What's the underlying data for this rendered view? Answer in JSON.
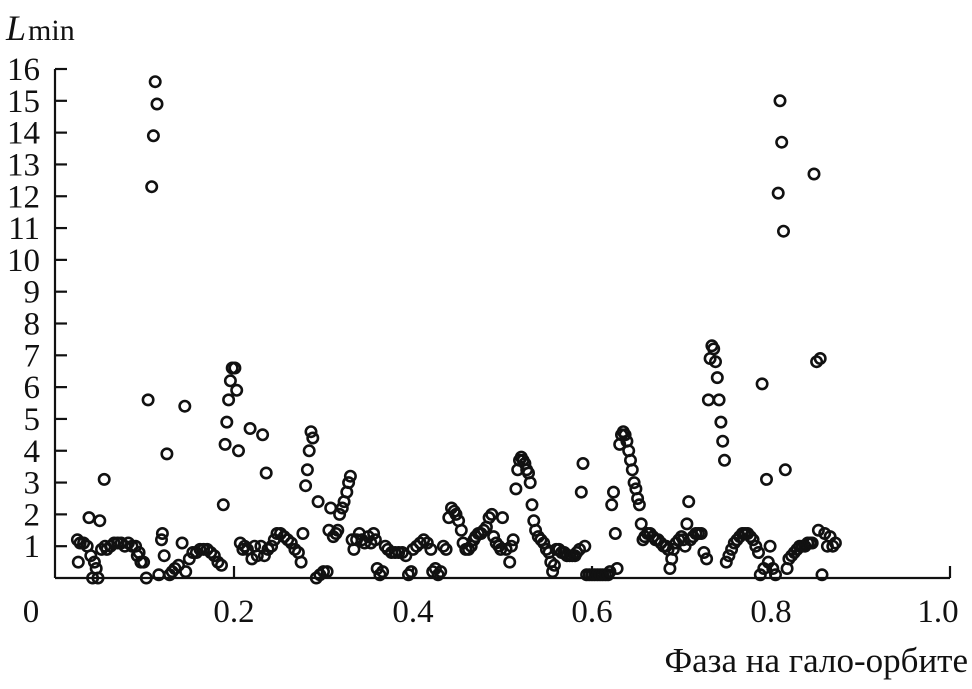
{
  "chart_data": {
    "type": "scatter",
    "title": "",
    "ylabel_main": "L",
    "ylabel_sub": "min",
    "xlabel": "Фаза на гало-орбите",
    "xlim": [
      0,
      1.0
    ],
    "ylim": [
      0,
      16
    ],
    "x_ticks": [
      0.2,
      0.4,
      0.6,
      0.8,
      1.0
    ],
    "x_tick_labels": [
      "0.2",
      "0.4",
      "0.6",
      "0.8",
      "1.0"
    ],
    "x_origin_label": "0",
    "y_ticks": [
      1,
      2,
      3,
      4,
      5,
      6,
      7,
      8,
      9,
      10,
      11,
      12,
      13,
      14,
      15,
      16
    ],
    "y_tick_labels": [
      "1",
      "2",
      "3",
      "4",
      "5",
      "6",
      "7",
      "8",
      "9",
      "10",
      "11",
      "12",
      "13",
      "14",
      "15",
      "16"
    ],
    "grid": false,
    "legend": "none",
    "marker": "open-circle",
    "points": [
      [
        0.025,
        1.2
      ],
      [
        0.026,
        0.5
      ],
      [
        0.028,
        1.1
      ],
      [
        0.032,
        1.1
      ],
      [
        0.036,
        1.0
      ],
      [
        0.038,
        1.9
      ],
      [
        0.04,
        0.7
      ],
      [
        0.042,
        0.0
      ],
      [
        0.044,
        0.5
      ],
      [
        0.046,
        0.3
      ],
      [
        0.048,
        0.0
      ],
      [
        0.05,
        1.8
      ],
      [
        0.052,
        0.9
      ],
      [
        0.055,
        3.1
      ],
      [
        0.056,
        1.0
      ],
      [
        0.058,
        0.9
      ],
      [
        0.062,
        1.0
      ],
      [
        0.066,
        1.1
      ],
      [
        0.07,
        1.1
      ],
      [
        0.074,
        1.1
      ],
      [
        0.078,
        1.0
      ],
      [
        0.082,
        1.1
      ],
      [
        0.086,
        1.0
      ],
      [
        0.09,
        1.0
      ],
      [
        0.092,
        0.7
      ],
      [
        0.094,
        0.8
      ],
      [
        0.096,
        0.5
      ],
      [
        0.099,
        0.5
      ],
      [
        0.102,
        0.0
      ],
      [
        0.104,
        5.6
      ],
      [
        0.108,
        12.3
      ],
      [
        0.11,
        13.9
      ],
      [
        0.112,
        15.6
      ],
      [
        0.114,
        14.9
      ],
      [
        0.116,
        0.1
      ],
      [
        0.119,
        1.2
      ],
      [
        0.12,
        1.4
      ],
      [
        0.122,
        0.7
      ],
      [
        0.125,
        3.9
      ],
      [
        0.128,
        0.1
      ],
      [
        0.131,
        0.2
      ],
      [
        0.134,
        0.3
      ],
      [
        0.138,
        0.4
      ],
      [
        0.142,
        1.1
      ],
      [
        0.145,
        5.4
      ],
      [
        0.146,
        0.2
      ],
      [
        0.15,
        0.6
      ],
      [
        0.154,
        0.8
      ],
      [
        0.158,
        0.8
      ],
      [
        0.162,
        0.9
      ],
      [
        0.166,
        0.9
      ],
      [
        0.17,
        0.9
      ],
      [
        0.174,
        0.8
      ],
      [
        0.178,
        0.7
      ],
      [
        0.182,
        0.5
      ],
      [
        0.186,
        0.4
      ],
      [
        0.188,
        2.3
      ],
      [
        0.19,
        4.2
      ],
      [
        0.192,
        4.9
      ],
      [
        0.194,
        5.6
      ],
      [
        0.196,
        6.2
      ],
      [
        0.198,
        6.6
      ],
      [
        0.201,
        6.6
      ],
      [
        0.203,
        5.9
      ],
      [
        0.205,
        4.0
      ],
      [
        0.207,
        1.1
      ],
      [
        0.21,
        0.9
      ],
      [
        0.212,
        1.0
      ],
      [
        0.215,
        0.9
      ],
      [
        0.218,
        4.7
      ],
      [
        0.22,
        0.6
      ],
      [
        0.223,
        1.0
      ],
      [
        0.226,
        0.7
      ],
      [
        0.23,
        1.0
      ],
      [
        0.232,
        4.5
      ],
      [
        0.234,
        0.7
      ],
      [
        0.236,
        3.3
      ],
      [
        0.238,
        0.9
      ],
      [
        0.242,
        1.0
      ],
      [
        0.245,
        1.2
      ],
      [
        0.248,
        1.4
      ],
      [
        0.252,
        1.4
      ],
      [
        0.256,
        1.3
      ],
      [
        0.26,
        1.2
      ],
      [
        0.264,
        1.1
      ],
      [
        0.268,
        0.9
      ],
      [
        0.272,
        0.8
      ],
      [
        0.275,
        0.5
      ],
      [
        0.277,
        1.4
      ],
      [
        0.28,
        2.9
      ],
      [
        0.282,
        3.4
      ],
      [
        0.284,
        4.0
      ],
      [
        0.286,
        4.6
      ],
      [
        0.288,
        4.4
      ],
      [
        0.292,
        0.0
      ],
      [
        0.294,
        2.4
      ],
      [
        0.296,
        0.1
      ],
      [
        0.3,
        0.2
      ],
      [
        0.304,
        0.2
      ],
      [
        0.306,
        1.5
      ],
      [
        0.308,
        2.2
      ],
      [
        0.311,
        1.3
      ],
      [
        0.314,
        1.4
      ],
      [
        0.316,
        1.5
      ],
      [
        0.318,
        2.0
      ],
      [
        0.321,
        2.2
      ],
      [
        0.323,
        2.4
      ],
      [
        0.326,
        2.7
      ],
      [
        0.328,
        3.0
      ],
      [
        0.33,
        3.2
      ],
      [
        0.332,
        1.2
      ],
      [
        0.334,
        0.9
      ],
      [
        0.337,
        1.2
      ],
      [
        0.34,
        1.4
      ],
      [
        0.343,
        1.2
      ],
      [
        0.346,
        1.1
      ],
      [
        0.35,
        1.3
      ],
      [
        0.353,
        1.1
      ],
      [
        0.356,
        1.4
      ],
      [
        0.358,
        1.2
      ],
      [
        0.36,
        0.3
      ],
      [
        0.363,
        0.1
      ],
      [
        0.366,
        0.2
      ],
      [
        0.369,
        1.0
      ],
      [
        0.372,
        0.9
      ],
      [
        0.376,
        0.8
      ],
      [
        0.38,
        0.8
      ],
      [
        0.384,
        0.8
      ],
      [
        0.388,
        0.8
      ],
      [
        0.392,
        0.7
      ],
      [
        0.395,
        0.1
      ],
      [
        0.398,
        0.2
      ],
      [
        0.4,
        0.9
      ],
      [
        0.404,
        1.0
      ],
      [
        0.408,
        1.1
      ],
      [
        0.412,
        1.2
      ],
      [
        0.416,
        1.1
      ],
      [
        0.42,
        0.9
      ],
      [
        0.422,
        0.2
      ],
      [
        0.425,
        0.3
      ],
      [
        0.428,
        0.1
      ],
      [
        0.431,
        0.2
      ],
      [
        0.434,
        1.0
      ],
      [
        0.437,
        0.9
      ],
      [
        0.44,
        1.9
      ],
      [
        0.443,
        2.2
      ],
      [
        0.446,
        2.1
      ],
      [
        0.448,
        2.0
      ],
      [
        0.451,
        1.8
      ],
      [
        0.454,
        1.5
      ],
      [
        0.456,
        1.1
      ],
      [
        0.459,
        0.9
      ],
      [
        0.462,
        0.9
      ],
      [
        0.465,
        1.0
      ],
      [
        0.468,
        1.2
      ],
      [
        0.47,
        1.3
      ],
      [
        0.473,
        1.4
      ],
      [
        0.476,
        1.4
      ],
      [
        0.479,
        1.5
      ],
      [
        0.482,
        1.6
      ],
      [
        0.485,
        1.9
      ],
      [
        0.488,
        2.0
      ],
      [
        0.49,
        1.3
      ],
      [
        0.493,
        1.1
      ],
      [
        0.496,
        1.0
      ],
      [
        0.498,
        0.9
      ],
      [
        0.5,
        1.9
      ],
      [
        0.504,
        0.9
      ],
      [
        0.508,
        0.5
      ],
      [
        0.51,
        1.0
      ],
      [
        0.512,
        1.2
      ],
      [
        0.515,
        2.8
      ],
      [
        0.517,
        3.4
      ],
      [
        0.519,
        3.7
      ],
      [
        0.521,
        3.8
      ],
      [
        0.523,
        3.7
      ],
      [
        0.525,
        3.6
      ],
      [
        0.527,
        3.4
      ],
      [
        0.529,
        3.3
      ],
      [
        0.531,
        3.0
      ],
      [
        0.533,
        2.3
      ],
      [
        0.535,
        1.8
      ],
      [
        0.537,
        1.5
      ],
      [
        0.54,
        1.3
      ],
      [
        0.543,
        1.2
      ],
      [
        0.546,
        1.1
      ],
      [
        0.549,
        0.9
      ],
      [
        0.552,
        0.8
      ],
      [
        0.554,
        0.5
      ],
      [
        0.556,
        0.2
      ],
      [
        0.558,
        0.4
      ],
      [
        0.56,
        0.9
      ],
      [
        0.563,
        0.9
      ],
      [
        0.566,
        0.8
      ],
      [
        0.569,
        0.8
      ],
      [
        0.572,
        0.7
      ],
      [
        0.575,
        0.7
      ],
      [
        0.578,
        0.7
      ],
      [
        0.581,
        0.7
      ],
      [
        0.583,
        0.8
      ],
      [
        0.586,
        0.9
      ],
      [
        0.588,
        2.7
      ],
      [
        0.59,
        3.6
      ],
      [
        0.592,
        1.0
      ],
      [
        0.594,
        0.1
      ],
      [
        0.597,
        0.1
      ],
      [
        0.6,
        0.1
      ],
      [
        0.603,
        0.1
      ],
      [
        0.606,
        0.1
      ],
      [
        0.609,
        0.1
      ],
      [
        0.612,
        0.1
      ],
      [
        0.615,
        0.1
      ],
      [
        0.618,
        0.1
      ],
      [
        0.62,
        0.2
      ],
      [
        0.622,
        2.3
      ],
      [
        0.624,
        2.7
      ],
      [
        0.626,
        1.4
      ],
      [
        0.628,
        0.3
      ],
      [
        0.631,
        4.2
      ],
      [
        0.633,
        4.5
      ],
      [
        0.635,
        4.6
      ],
      [
        0.637,
        4.5
      ],
      [
        0.639,
        4.3
      ],
      [
        0.641,
        4.0
      ],
      [
        0.643,
        3.7
      ],
      [
        0.645,
        3.4
      ],
      [
        0.647,
        3.0
      ],
      [
        0.649,
        2.8
      ],
      [
        0.651,
        2.5
      ],
      [
        0.653,
        2.3
      ],
      [
        0.655,
        1.7
      ],
      [
        0.657,
        1.2
      ],
      [
        0.659,
        1.3
      ],
      [
        0.662,
        1.4
      ],
      [
        0.665,
        1.4
      ],
      [
        0.668,
        1.3
      ],
      [
        0.671,
        1.2
      ],
      [
        0.674,
        1.2
      ],
      [
        0.677,
        1.1
      ],
      [
        0.68,
        1.0
      ],
      [
        0.683,
        1.0
      ],
      [
        0.685,
        0.9
      ],
      [
        0.687,
        0.3
      ],
      [
        0.689,
        0.6
      ],
      [
        0.691,
        0.9
      ],
      [
        0.694,
        1.1
      ],
      [
        0.697,
        1.2
      ],
      [
        0.7,
        1.3
      ],
      [
        0.702,
        1.2
      ],
      [
        0.704,
        1.0
      ],
      [
        0.706,
        1.7
      ],
      [
        0.708,
        2.4
      ],
      [
        0.71,
        1.2
      ],
      [
        0.713,
        1.3
      ],
      [
        0.716,
        1.4
      ],
      [
        0.719,
        1.4
      ],
      [
        0.722,
        1.4
      ],
      [
        0.725,
        0.8
      ],
      [
        0.728,
        0.6
      ],
      [
        0.73,
        5.6
      ],
      [
        0.732,
        6.9
      ],
      [
        0.734,
        7.3
      ],
      [
        0.736,
        7.2
      ],
      [
        0.738,
        6.8
      ],
      [
        0.74,
        6.3
      ],
      [
        0.742,
        5.6
      ],
      [
        0.744,
        4.9
      ],
      [
        0.746,
        4.3
      ],
      [
        0.748,
        3.7
      ],
      [
        0.75,
        0.5
      ],
      [
        0.753,
        0.7
      ],
      [
        0.756,
        0.9
      ],
      [
        0.759,
        1.1
      ],
      [
        0.762,
        1.2
      ],
      [
        0.765,
        1.3
      ],
      [
        0.768,
        1.4
      ],
      [
        0.771,
        1.4
      ],
      [
        0.774,
        1.4
      ],
      [
        0.777,
        1.3
      ],
      [
        0.78,
        1.2
      ],
      [
        0.783,
        1.0
      ],
      [
        0.786,
        0.8
      ],
      [
        0.788,
        0.1
      ],
      [
        0.79,
        6.1
      ],
      [
        0.792,
        0.3
      ],
      [
        0.795,
        3.1
      ],
      [
        0.797,
        0.5
      ],
      [
        0.799,
        1.0
      ],
      [
        0.802,
        0.3
      ],
      [
        0.805,
        0.1
      ],
      [
        0.808,
        12.1
      ],
      [
        0.81,
        15.0
      ],
      [
        0.812,
        13.7
      ],
      [
        0.814,
        10.9
      ],
      [
        0.816,
        3.4
      ],
      [
        0.818,
        0.3
      ],
      [
        0.82,
        0.6
      ],
      [
        0.823,
        0.7
      ],
      [
        0.826,
        0.8
      ],
      [
        0.829,
        0.9
      ],
      [
        0.832,
        1.0
      ],
      [
        0.835,
        1.0
      ],
      [
        0.838,
        1.0
      ],
      [
        0.841,
        1.1
      ],
      [
        0.844,
        1.1
      ],
      [
        0.846,
        1.1
      ],
      [
        0.848,
        12.7
      ],
      [
        0.851,
        6.8
      ],
      [
        0.853,
        1.5
      ],
      [
        0.855,
        6.9
      ],
      [
        0.857,
        0.1
      ],
      [
        0.86,
        1.4
      ],
      [
        0.863,
        1.0
      ],
      [
        0.866,
        1.3
      ],
      [
        0.869,
        1.0
      ],
      [
        0.872,
        1.1
      ]
    ]
  }
}
